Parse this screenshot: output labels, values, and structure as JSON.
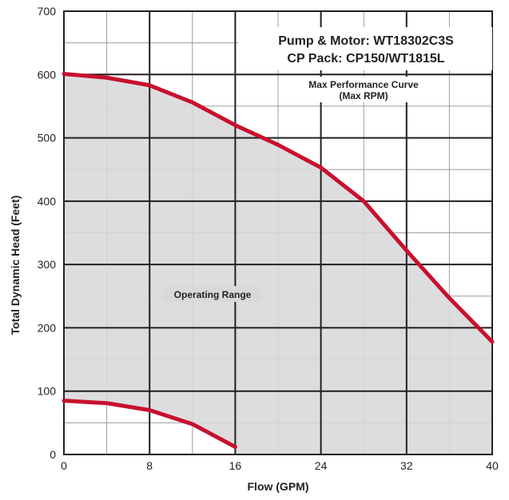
{
  "chart_data": {
    "type": "area",
    "title_lines": [
      "Pump & Motor: WT18302C3S",
      "CP Pack: CP150/WT1815L"
    ],
    "xlabel": "Flow (GPM)",
    "ylabel": "Total Dynamic Head (Feet)",
    "xlim": [
      0,
      40
    ],
    "ylim": [
      0,
      700
    ],
    "x_ticks": [
      0,
      8,
      16,
      24,
      32,
      40
    ],
    "y_ticks": [
      0,
      100,
      200,
      300,
      400,
      500,
      600,
      700
    ],
    "grid": true,
    "series": [
      {
        "name": "Max Performance Curve (Max RPM)",
        "x": [
          0,
          4,
          8,
          12,
          16,
          20,
          24,
          28,
          32,
          36,
          40
        ],
        "y": [
          601,
          595,
          583,
          556,
          520,
          489,
          453,
          400,
          322,
          247,
          178
        ]
      },
      {
        "x": [
          0,
          4,
          8,
          12,
          16
        ],
        "y": [
          85,
          81,
          70,
          48,
          12
        ]
      }
    ],
    "annotations": [
      {
        "text_lines": [
          "Max Performance Curve",
          "(Max RPM)"
        ]
      },
      {
        "text": "Operating Range"
      }
    ],
    "colors": {
      "curve": "#c8102e",
      "fill": "#d9d9db",
      "grid": "#231f20",
      "background": "#ffffff"
    }
  }
}
